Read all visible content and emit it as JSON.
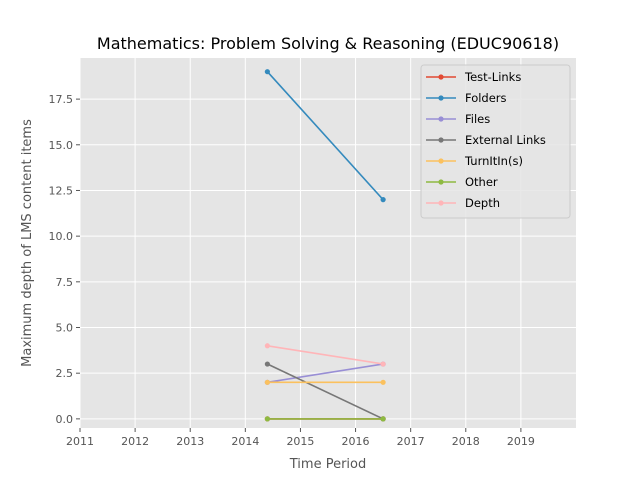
{
  "chart_data": {
    "type": "line",
    "title": "Mathematics: Problem Solving & Reasoning (EDUC90618)",
    "xlabel": "Time Period",
    "ylabel": "Maximum depth of LMS content items",
    "xlim": [
      2011,
      2020
    ],
    "ylim": [
      -0.5,
      19.75
    ],
    "x_ticks": [
      2011,
      2012,
      2013,
      2014,
      2015,
      2016,
      2017,
      2018,
      2019
    ],
    "y_ticks": [
      "0.0",
      "2.5",
      "5.0",
      "7.5",
      "10.0",
      "12.5",
      "15.0",
      "17.5"
    ],
    "grid": true,
    "legend_position": "top-right",
    "x": [
      2014.4,
      2016.5
    ],
    "series": [
      {
        "name": "Test-Links",
        "color": "#e24a33",
        "values": [
          0,
          0
        ]
      },
      {
        "name": "Folders",
        "color": "#348abd",
        "values": [
          19,
          12
        ]
      },
      {
        "name": "Files",
        "color": "#988ed5",
        "values": [
          2,
          3
        ]
      },
      {
        "name": "External Links",
        "color": "#777777",
        "values": [
          3,
          0
        ]
      },
      {
        "name": "TurnItIn(s)",
        "color": "#fbc15e",
        "values": [
          2,
          2
        ]
      },
      {
        "name": "Other",
        "color": "#8eba42",
        "values": [
          0,
          0
        ]
      },
      {
        "name": "Depth",
        "color": "#ffb5b8",
        "values": [
          4,
          3
        ]
      }
    ]
  }
}
